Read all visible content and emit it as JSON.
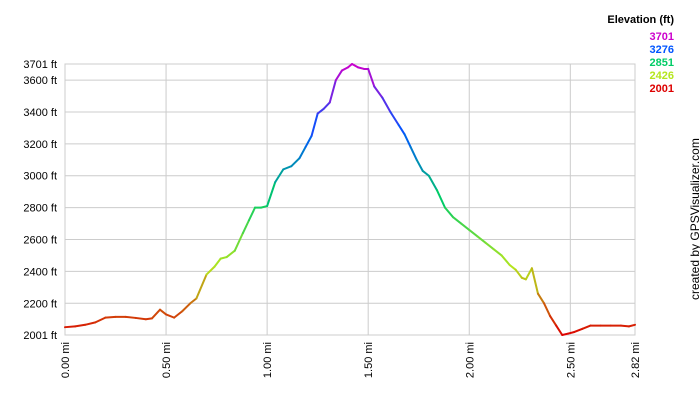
{
  "credit": "created by GPSVisualizer.com",
  "legend": {
    "title": "Elevation (ft)",
    "items": [
      {
        "label": "3701",
        "color": "#cc00cc"
      },
      {
        "label": "3276",
        "color": "#0055ff"
      },
      {
        "label": "2851",
        "color": "#00cc66"
      },
      {
        "label": "2426",
        "color": "#b5e61d"
      },
      {
        "label": "2001",
        "color": "#dd0000"
      }
    ]
  },
  "chart_data": {
    "type": "line",
    "xlabel": "",
    "ylabel": "",
    "xlim": [
      0,
      2.82
    ],
    "ylim": [
      2001,
      3701
    ],
    "grid": true,
    "x_ticks": [
      {
        "value": 0.0,
        "label": "0.00 mi"
      },
      {
        "value": 0.5,
        "label": "0.50 mi"
      },
      {
        "value": 1.0,
        "label": "1.00 mi"
      },
      {
        "value": 1.5,
        "label": "1.50 mi"
      },
      {
        "value": 2.0,
        "label": "2.00 mi"
      },
      {
        "value": 2.5,
        "label": "2.50 mi"
      },
      {
        "value": 2.82,
        "label": "2.82 mi"
      }
    ],
    "y_ticks": [
      {
        "value": 2001,
        "label": "2001 ft"
      },
      {
        "value": 2200,
        "label": "2200 ft"
      },
      {
        "value": 2400,
        "label": "2400 ft"
      },
      {
        "value": 2600,
        "label": "2600 ft"
      },
      {
        "value": 2800,
        "label": "2800 ft"
      },
      {
        "value": 3000,
        "label": "3000 ft"
      },
      {
        "value": 3200,
        "label": "3200 ft"
      },
      {
        "value": 3400,
        "label": "3400 ft"
      },
      {
        "value": 3600,
        "label": "3600 ft"
      },
      {
        "value": 3701,
        "label": "3701 ft"
      }
    ],
    "color_stops": [
      {
        "value": 2001,
        "color": "#dd0000"
      },
      {
        "value": 2426,
        "color": "#b5e61d"
      },
      {
        "value": 2851,
        "color": "#00cc66"
      },
      {
        "value": 3276,
        "color": "#0055ff"
      },
      {
        "value": 3701,
        "color": "#cc00cc"
      }
    ],
    "series": [
      {
        "x": [
          0.0,
          0.05,
          0.1,
          0.15,
          0.2,
          0.25,
          0.3,
          0.35,
          0.4,
          0.43,
          0.47,
          0.5,
          0.54,
          0.58,
          0.62,
          0.65,
          0.7,
          0.74,
          0.77,
          0.8,
          0.84,
          0.88,
          0.91,
          0.94,
          0.97,
          1.0,
          1.04,
          1.08,
          1.12,
          1.16,
          1.19,
          1.22,
          1.25,
          1.28,
          1.31,
          1.34,
          1.37,
          1.4,
          1.42,
          1.45,
          1.48,
          1.5,
          1.53,
          1.57,
          1.61,
          1.65,
          1.68,
          1.71,
          1.74,
          1.77,
          1.8,
          1.84,
          1.88,
          1.92,
          1.96,
          2.0,
          2.04,
          2.08,
          2.12,
          2.16,
          2.2,
          2.23,
          2.26,
          2.28,
          2.31,
          2.34,
          2.37,
          2.4,
          2.43,
          2.46,
          2.49,
          2.52,
          2.56,
          2.6,
          2.65,
          2.7,
          2.75,
          2.79,
          2.82
        ],
        "y": [
          2050,
          2055,
          2065,
          2080,
          2110,
          2115,
          2115,
          2108,
          2100,
          2105,
          2160,
          2130,
          2110,
          2150,
          2200,
          2230,
          2380,
          2430,
          2480,
          2490,
          2530,
          2640,
          2720,
          2800,
          2800,
          2810,
          2960,
          3040,
          3060,
          3110,
          3180,
          3250,
          3390,
          3420,
          3460,
          3600,
          3660,
          3680,
          3701,
          3680,
          3670,
          3670,
          3560,
          3490,
          3400,
          3320,
          3260,
          3180,
          3100,
          3030,
          3000,
          2910,
          2800,
          2740,
          2700,
          2660,
          2620,
          2580,
          2540,
          2500,
          2440,
          2410,
          2360,
          2350,
          2420,
          2260,
          2200,
          2120,
          2060,
          2001,
          2010,
          2020,
          2040,
          2060,
          2060,
          2060,
          2060,
          2055,
          2065
        ]
      }
    ]
  }
}
